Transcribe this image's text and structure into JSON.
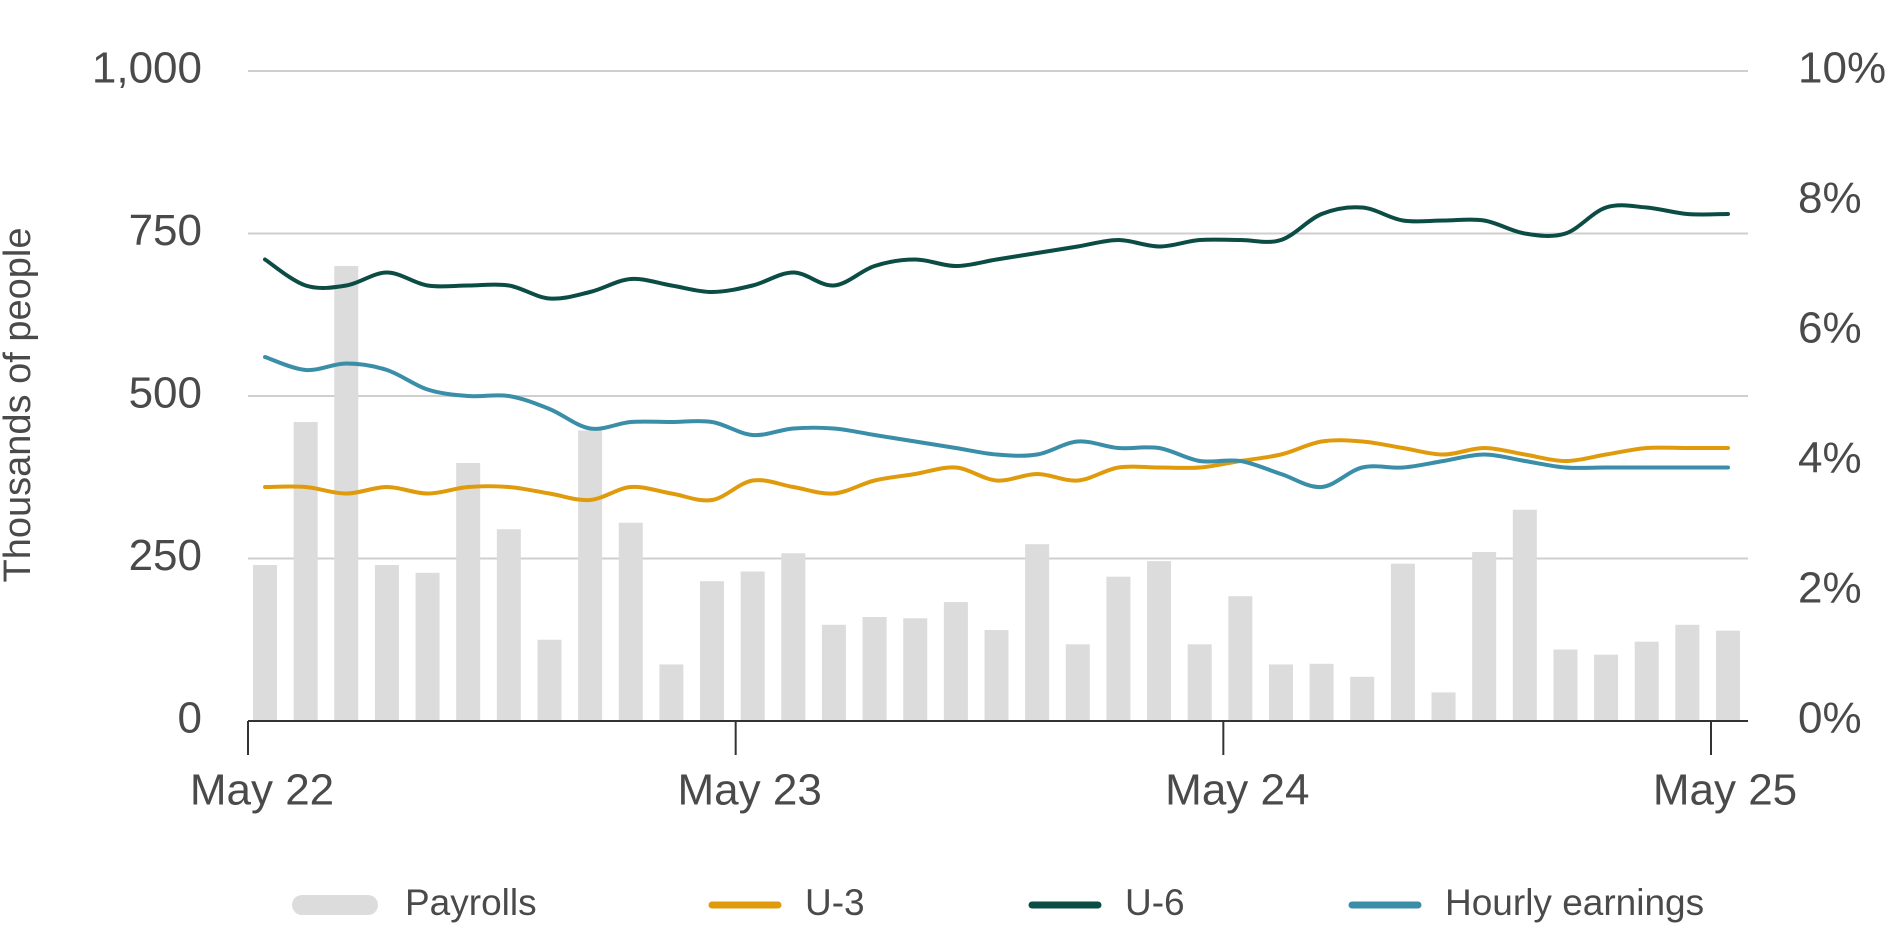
{
  "chart_data": {
    "type": "combo",
    "y_label": "Thousands of people",
    "categories": [
      "May 22",
      null,
      null,
      null,
      null,
      null,
      null,
      null,
      null,
      null,
      null,
      null,
      "May 23",
      null,
      null,
      null,
      null,
      null,
      null,
      null,
      null,
      null,
      null,
      null,
      "May 24",
      null,
      null,
      null,
      null,
      null,
      null,
      null,
      null,
      null,
      null,
      null,
      "May 25"
    ],
    "ylim": [
      0,
      1000
    ],
    "yticks": [
      0,
      250,
      500,
      750,
      {
        "value": 1000,
        "label": "1,000"
      }
    ],
    "y2lim": [
      0,
      10
    ],
    "y2ticks": [
      {
        "value": 0,
        "label": "0%"
      },
      {
        "value": 2,
        "label": "2%"
      },
      {
        "value": 4,
        "label": "4%"
      },
      {
        "value": 6,
        "label": "6%"
      },
      {
        "value": 8,
        "label": "8%"
      },
      {
        "value": 10,
        "label": "10%"
      }
    ],
    "grid": true,
    "legend": "bottom",
    "series": [
      {
        "name": "Payrolls",
        "type": "bar",
        "color": "#dcdcdc",
        "values": [
          240,
          460,
          700,
          240,
          228,
          397,
          295,
          125,
          447,
          305,
          87,
          215,
          230,
          258,
          148,
          160,
          158,
          183,
          140,
          272,
          118,
          222,
          246,
          118,
          192,
          87,
          88,
          68,
          242,
          44,
          260,
          325,
          110,
          102,
          122,
          148,
          139
        ]
      },
      {
        "name": "U-3",
        "type": "line",
        "axis": "y2",
        "color": "#e09b0c",
        "values": [
          3.6,
          3.6,
          3.5,
          3.6,
          3.5,
          3.6,
          3.6,
          3.5,
          3.4,
          3.6,
          3.5,
          3.4,
          3.7,
          3.6,
          3.5,
          3.7,
          3.8,
          3.9,
          3.7,
          3.8,
          3.7,
          3.9,
          3.9,
          3.9,
          4.0,
          4.1,
          4.3,
          4.3,
          4.2,
          4.1,
          4.2,
          4.1,
          4.0,
          4.1,
          4.2,
          4.2,
          4.2
        ]
      },
      {
        "name": "U-6",
        "type": "line",
        "axis": "y2",
        "color": "#0b4d45",
        "values": [
          7.1,
          6.7,
          6.7,
          6.9,
          6.7,
          6.7,
          6.7,
          6.5,
          6.6,
          6.8,
          6.7,
          6.6,
          6.7,
          6.9,
          6.7,
          7.0,
          7.1,
          7.0,
          7.1,
          7.2,
          7.3,
          7.4,
          7.3,
          7.4,
          7.4,
          7.4,
          7.8,
          7.9,
          7.7,
          7.7,
          7.7,
          7.5,
          7.5,
          7.9,
          7.9,
          7.8,
          7.8
        ]
      },
      {
        "name": "Hourly earnings",
        "type": "line",
        "axis": "y2",
        "color": "#3a8ea8",
        "values": [
          5.6,
          5.4,
          5.5,
          5.4,
          5.1,
          5.0,
          5.0,
          4.8,
          4.5,
          4.6,
          4.6,
          4.6,
          4.4,
          4.5,
          4.5,
          4.4,
          4.3,
          4.2,
          4.1,
          4.1,
          4.3,
          4.2,
          4.2,
          4.0,
          4.0,
          3.8,
          3.6,
          3.9,
          3.9,
          4.0,
          4.1,
          4.0,
          3.9,
          3.9,
          3.9,
          3.9,
          3.9
        ]
      }
    ]
  }
}
